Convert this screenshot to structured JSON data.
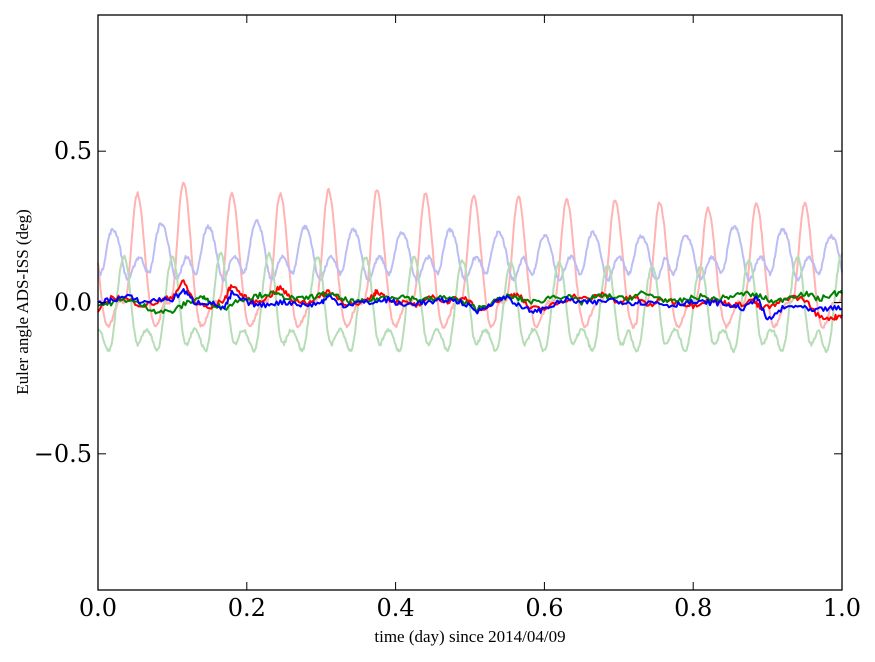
{
  "chart_data": {
    "type": "line",
    "xlabel": "time (day) since 2014/04/09",
    "ylabel": "Euler angle ADS-ISS (deg)",
    "xlim": [
      0.0,
      1.0
    ],
    "ylim": [
      -0.95,
      0.95
    ],
    "x_ticks": [
      0.0,
      0.2,
      0.4,
      0.6,
      0.8,
      1.0
    ],
    "x_tick_labels": [
      "0.0",
      "0.2",
      "0.4",
      "0.6",
      "0.8",
      "1.0"
    ],
    "y_ticks": [
      -0.5,
      0.0,
      0.5
    ],
    "y_tick_labels": [
      "−0.5",
      "0.0",
      "0.5"
    ],
    "grid": false,
    "legend": "none",
    "n_orbits": 16,
    "series": [
      {
        "color": "#ffb3b3",
        "style": "faint",
        "description_note": "periodic oscillation, faint red",
        "base": 0.03,
        "peaks_x": [
          0.053,
          0.115,
          0.18,
          0.245,
          0.31,
          0.375,
          0.44,
          0.505,
          0.565,
          0.63,
          0.695,
          0.755,
          0.82,
          0.885,
          0.95
        ],
        "peaks_y": [
          0.36,
          0.4,
          0.36,
          0.36,
          0.37,
          0.37,
          0.36,
          0.35,
          0.35,
          0.34,
          0.34,
          0.33,
          0.31,
          0.33,
          0.33
        ],
        "troughs_y": -0.04
      },
      {
        "color": "#bdbdf5",
        "style": "faint",
        "peaks_x": [
          0.02,
          0.085,
          0.148,
          0.213,
          0.278,
          0.343,
          0.408,
          0.473,
          0.538,
          0.6,
          0.665,
          0.73,
          0.79,
          0.855,
          0.92,
          0.985
        ],
        "peaks_y": [
          0.24,
          0.26,
          0.25,
          0.27,
          0.25,
          0.24,
          0.23,
          0.24,
          0.23,
          0.22,
          0.23,
          0.22,
          0.22,
          0.25,
          0.24,
          0.22
        ],
        "troughs_y": 0.11
      },
      {
        "color": "#b7ddb7",
        "style": "faint",
        "peaks_x": [
          0.035,
          0.1,
          0.165,
          0.23,
          0.295,
          0.36,
          0.425,
          0.49,
          0.555,
          0.62,
          0.685,
          0.745,
          0.81,
          0.875,
          0.94,
          1.0
        ],
        "peaks_y": [
          0.15,
          0.15,
          0.16,
          0.16,
          0.15,
          0.15,
          0.15,
          0.14,
          0.13,
          0.13,
          0.12,
          0.12,
          0.12,
          0.14,
          0.15,
          0.16
        ],
        "troughs_y": -0.13
      },
      {
        "color": "#ff0000",
        "style": "bold",
        "points": [
          [
            0.0,
            -0.03
          ],
          [
            0.02,
            0.02
          ],
          [
            0.04,
            0.01
          ],
          [
            0.06,
            -0.01
          ],
          [
            0.08,
            0.0
          ],
          [
            0.1,
            0.02
          ],
          [
            0.115,
            0.07
          ],
          [
            0.13,
            0.0
          ],
          [
            0.15,
            -0.02
          ],
          [
            0.17,
            0.01
          ],
          [
            0.18,
            0.06
          ],
          [
            0.195,
            0.02
          ],
          [
            0.21,
            0.0
          ],
          [
            0.23,
            0.02
          ],
          [
            0.245,
            0.05
          ],
          [
            0.26,
            0.01
          ],
          [
            0.28,
            0.0
          ],
          [
            0.3,
            0.02
          ],
          [
            0.31,
            0.04
          ],
          [
            0.33,
            0.0
          ],
          [
            0.35,
            -0.01
          ],
          [
            0.37,
            0.02
          ],
          [
            0.375,
            0.04
          ],
          [
            0.39,
            0.01
          ],
          [
            0.41,
            0.0
          ],
          [
            0.43,
            -0.01
          ],
          [
            0.45,
            0.02
          ],
          [
            0.47,
            0.0
          ],
          [
            0.49,
            0.02
          ],
          [
            0.5,
            0.0
          ],
          [
            0.51,
            -0.03
          ],
          [
            0.53,
            0.0
          ],
          [
            0.55,
            0.02
          ],
          [
            0.565,
            0.03
          ],
          [
            0.58,
            -0.02
          ],
          [
            0.6,
            -0.02
          ],
          [
            0.62,
            0.0
          ],
          [
            0.64,
            0.02
          ],
          [
            0.66,
            0.01
          ],
          [
            0.68,
            0.03
          ],
          [
            0.7,
            0.0
          ],
          [
            0.72,
            0.02
          ],
          [
            0.74,
            -0.01
          ],
          [
            0.76,
            0.01
          ],
          [
            0.78,
            0.0
          ],
          [
            0.8,
            -0.01
          ],
          [
            0.82,
            0.01
          ],
          [
            0.84,
            0.0
          ],
          [
            0.86,
            -0.01
          ],
          [
            0.88,
            0.01
          ],
          [
            0.89,
            -0.02
          ],
          [
            0.91,
            -0.01
          ],
          [
            0.93,
            0.02
          ],
          [
            0.95,
            0.01
          ],
          [
            0.97,
            -0.05
          ],
          [
            0.99,
            -0.05
          ],
          [
            1.0,
            -0.04
          ]
        ]
      },
      {
        "color": "#008000",
        "style": "bold",
        "points": [
          [
            0.0,
            -0.01
          ],
          [
            0.02,
            0.0
          ],
          [
            0.04,
            0.01
          ],
          [
            0.06,
            -0.01
          ],
          [
            0.08,
            -0.03
          ],
          [
            0.1,
            -0.03
          ],
          [
            0.12,
            0.0
          ],
          [
            0.14,
            0.02
          ],
          [
            0.15,
            0.0
          ],
          [
            0.17,
            -0.02
          ],
          [
            0.19,
            0.01
          ],
          [
            0.21,
            0.02
          ],
          [
            0.23,
            0.03
          ],
          [
            0.25,
            0.02
          ],
          [
            0.27,
            0.01
          ],
          [
            0.29,
            0.02
          ],
          [
            0.31,
            0.03
          ],
          [
            0.33,
            0.01
          ],
          [
            0.35,
            0.0
          ],
          [
            0.37,
            0.01
          ],
          [
            0.39,
            0.02
          ],
          [
            0.41,
            0.02
          ],
          [
            0.43,
            0.01
          ],
          [
            0.45,
            0.01
          ],
          [
            0.47,
            0.02
          ],
          [
            0.49,
            0.0
          ],
          [
            0.51,
            -0.02
          ],
          [
            0.53,
            0.0
          ],
          [
            0.55,
            0.02
          ],
          [
            0.57,
            0.01
          ],
          [
            0.59,
            0.0
          ],
          [
            0.61,
            0.02
          ],
          [
            0.63,
            0.02
          ],
          [
            0.65,
            0.0
          ],
          [
            0.67,
            0.02
          ],
          [
            0.69,
            0.02
          ],
          [
            0.71,
            0.01
          ],
          [
            0.73,
            0.03
          ],
          [
            0.75,
            0.02
          ],
          [
            0.77,
            0.0
          ],
          [
            0.79,
            0.01
          ],
          [
            0.81,
            0.02
          ],
          [
            0.83,
            0.01
          ],
          [
            0.85,
            0.02
          ],
          [
            0.87,
            0.03
          ],
          [
            0.89,
            0.02
          ],
          [
            0.91,
            0.0
          ],
          [
            0.93,
            0.02
          ],
          [
            0.95,
            0.03
          ],
          [
            0.97,
            0.01
          ],
          [
            0.99,
            0.03
          ],
          [
            1.0,
            0.03
          ]
        ]
      },
      {
        "color": "#0000ff",
        "style": "bold",
        "points": [
          [
            0.0,
            0.0
          ],
          [
            0.02,
            0.01
          ],
          [
            0.04,
            0.02
          ],
          [
            0.06,
            0.0
          ],
          [
            0.08,
            0.01
          ],
          [
            0.1,
            0.01
          ],
          [
            0.115,
            0.04
          ],
          [
            0.13,
            0.0
          ],
          [
            0.15,
            0.0
          ],
          [
            0.17,
            -0.02
          ],
          [
            0.18,
            0.03
          ],
          [
            0.2,
            0.0
          ],
          [
            0.22,
            -0.01
          ],
          [
            0.24,
            0.0
          ],
          [
            0.26,
            0.0
          ],
          [
            0.28,
            -0.01
          ],
          [
            0.3,
            0.0
          ],
          [
            0.31,
            0.02
          ],
          [
            0.33,
            -0.01
          ],
          [
            0.35,
            0.0
          ],
          [
            0.37,
            0.0
          ],
          [
            0.39,
            0.01
          ],
          [
            0.41,
            -0.01
          ],
          [
            0.43,
            0.0
          ],
          [
            0.45,
            0.0
          ],
          [
            0.47,
            0.01
          ],
          [
            0.49,
            0.0
          ],
          [
            0.51,
            -0.03
          ],
          [
            0.53,
            0.0
          ],
          [
            0.55,
            0.02
          ],
          [
            0.57,
            -0.02
          ],
          [
            0.59,
            -0.03
          ],
          [
            0.61,
            -0.01
          ],
          [
            0.63,
            0.01
          ],
          [
            0.65,
            0.0
          ],
          [
            0.67,
            0.0
          ],
          [
            0.69,
            0.01
          ],
          [
            0.71,
            0.0
          ],
          [
            0.73,
            0.0
          ],
          [
            0.75,
            0.0
          ],
          [
            0.77,
            -0.01
          ],
          [
            0.79,
            0.0
          ],
          [
            0.81,
            0.0
          ],
          [
            0.83,
            0.0
          ],
          [
            0.85,
            -0.01
          ],
          [
            0.87,
            -0.02
          ],
          [
            0.885,
            0.02
          ],
          [
            0.9,
            -0.06
          ],
          [
            0.92,
            -0.02
          ],
          [
            0.94,
            -0.01
          ],
          [
            0.96,
            -0.03
          ],
          [
            0.98,
            -0.02
          ],
          [
            1.0,
            -0.02
          ]
        ]
      }
    ]
  }
}
